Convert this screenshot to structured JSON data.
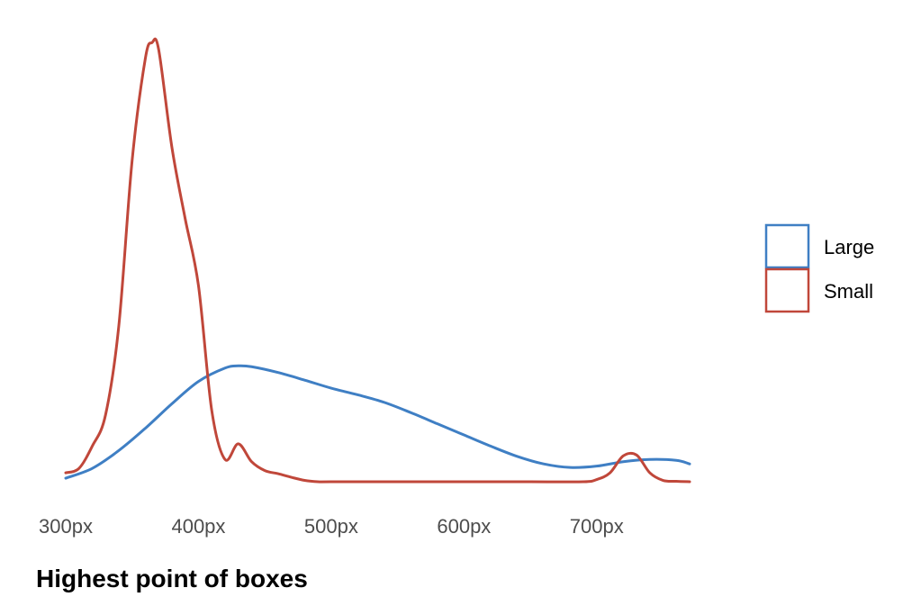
{
  "chart_data": {
    "type": "line",
    "title": "",
    "xlabel": "Highest point of boxes",
    "ylabel": "",
    "xlim": [
      300,
      770
    ],
    "ylim": [
      0,
      1
    ],
    "x_ticks": [
      300,
      400,
      500,
      600,
      700
    ],
    "x_tick_labels": [
      "300px",
      "400px",
      "500px",
      "600px",
      "700px"
    ],
    "grid": false,
    "legend_position": "right",
    "series": [
      {
        "name": "Large",
        "color": "#3f7fc4",
        "x": [
          300,
          320,
          340,
          360,
          380,
          400,
          420,
          430,
          440,
          460,
          480,
          500,
          520,
          540,
          560,
          580,
          600,
          620,
          640,
          660,
          680,
          700,
          720,
          740,
          760,
          770
        ],
        "y": [
          0.008,
          0.03,
          0.07,
          0.12,
          0.175,
          0.225,
          0.255,
          0.26,
          0.258,
          0.245,
          0.228,
          0.21,
          0.195,
          0.178,
          0.155,
          0.13,
          0.105,
          0.08,
          0.057,
          0.04,
          0.032,
          0.035,
          0.045,
          0.05,
          0.048,
          0.04
        ]
      },
      {
        "name": "Small",
        "color": "#c0473a",
        "x": [
          300,
          310,
          320,
          330,
          340,
          350,
          360,
          365,
          370,
          380,
          390,
          400,
          410,
          420,
          430,
          440,
          450,
          460,
          470,
          480,
          490,
          500,
          550,
          600,
          650,
          690,
          700,
          710,
          720,
          730,
          740,
          750,
          760,
          770
        ],
        "y": [
          0.02,
          0.03,
          0.08,
          0.15,
          0.35,
          0.72,
          0.95,
          0.985,
          0.97,
          0.75,
          0.59,
          0.44,
          0.16,
          0.05,
          0.085,
          0.045,
          0.025,
          0.018,
          0.01,
          0.003,
          0,
          0,
          0,
          0,
          0,
          0,
          0.005,
          0.02,
          0.058,
          0.06,
          0.02,
          0.003,
          0.001,
          0
        ]
      }
    ]
  }
}
